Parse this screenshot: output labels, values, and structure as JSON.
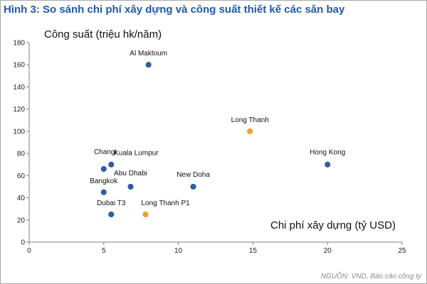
{
  "chart_data": {
    "type": "scatter",
    "title": "Hình 3: So sánh chi phí xây dựng và công suất thiết kế các sân bay",
    "xlabel": "Chi phí xây dựng (tỷ USD)",
    "ylabel": "Công suất (triệu hk/năm)",
    "source": "NGUỒN: VND, Báo cáo công ty",
    "xlim": [
      0,
      25
    ],
    "ylim": [
      0,
      180
    ],
    "xticks": [
      0,
      5,
      10,
      15,
      20,
      25
    ],
    "yticks": [
      0,
      20,
      40,
      60,
      80,
      100,
      120,
      140,
      160,
      180
    ],
    "grid": false,
    "colors": {
      "existing": "#2e5f9e",
      "long_thanh": "#f0a030"
    },
    "points": [
      {
        "label": "Al Maktoum",
        "x": 8,
        "y": 160,
        "group": "existing"
      },
      {
        "label": "Long Thanh",
        "x": 14.8,
        "y": 100,
        "group": "long_thanh"
      },
      {
        "label": "Hong Kong",
        "x": 20,
        "y": 70,
        "group": "existing"
      },
      {
        "label": "Changi",
        "x": 5,
        "y": 66,
        "group": "existing"
      },
      {
        "label": "Kuala Lumpur",
        "x": 5.5,
        "y": 70,
        "group": "existing"
      },
      {
        "label": "Abu Dhabi",
        "x": 6.8,
        "y": 50,
        "group": "existing"
      },
      {
        "label": "New Doha",
        "x": 11,
        "y": 50,
        "group": "existing"
      },
      {
        "label": "Bangkok",
        "x": 5,
        "y": 45,
        "group": "existing"
      },
      {
        "label": "Dubai T3",
        "x": 5.5,
        "y": 25,
        "group": "existing"
      },
      {
        "label": "Long Thanh P1",
        "x": 7.8,
        "y": 25,
        "group": "long_thanh"
      }
    ]
  }
}
